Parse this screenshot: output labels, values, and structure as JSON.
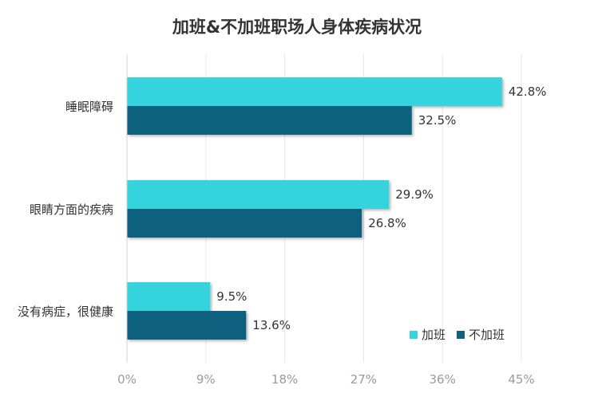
{
  "chart_data": {
    "type": "bar",
    "orientation": "horizontal",
    "title": "加班&不加班职场人身体疾病状况",
    "categories": [
      "睡眠障碍",
      "眼睛方面的疾病",
      "没有病症，很健康"
    ],
    "series": [
      {
        "name": "加班",
        "color": "#34D3DE",
        "values": [
          42.8,
          29.9,
          9.5
        ],
        "labels": [
          "42.8%",
          "29.9%",
          "9.5%"
        ]
      },
      {
        "name": "不加班",
        "color": "#11617E",
        "values": [
          32.5,
          26.8,
          13.6
        ],
        "labels": [
          "32.5%",
          "26.8%",
          "13.6%"
        ]
      }
    ],
    "xlim": [
      0,
      45
    ],
    "xticks": [
      "0%",
      "9%",
      "18%",
      "27%",
      "36%",
      "45%"
    ],
    "grid": true,
    "legend": "bottom-right"
  }
}
